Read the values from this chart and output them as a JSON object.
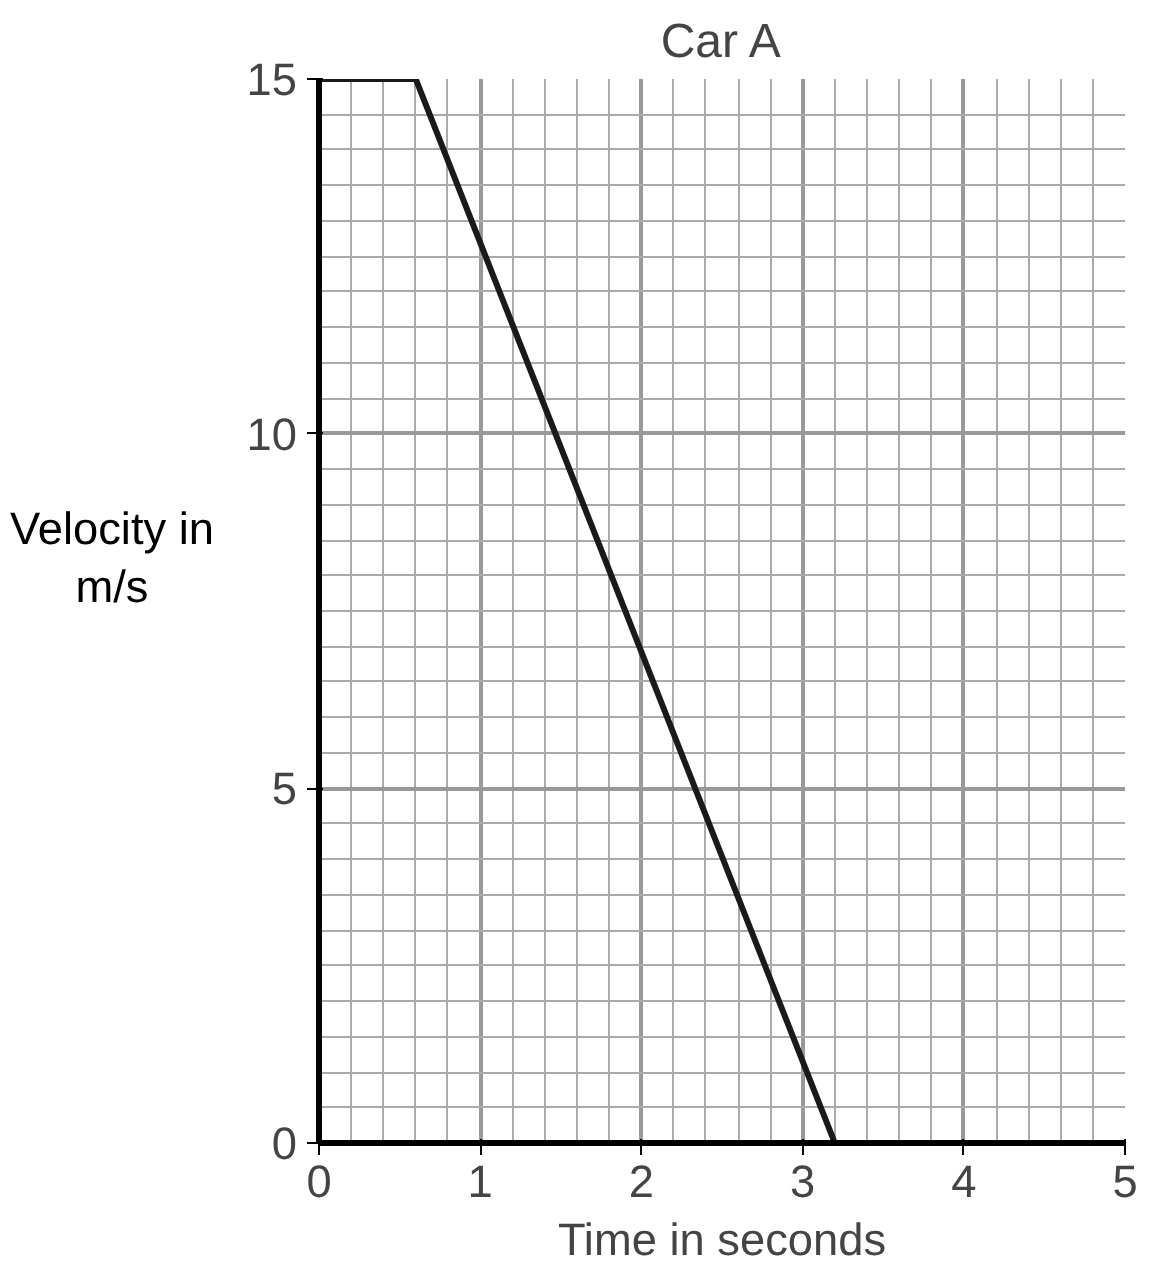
{
  "chart_data": {
    "type": "line",
    "title": "Car A",
    "xlabel": "Time in seconds",
    "ylabel": "Velocity in m/s",
    "x": [
      0,
      0.6,
      3.2,
      5
    ],
    "series": [
      {
        "color": "#1a1a1a",
        "values": [
          15,
          15,
          0,
          0
        ]
      }
    ],
    "xlim": [
      0,
      5
    ],
    "ylim": [
      0,
      15
    ],
    "xticks": [
      0,
      1,
      2,
      3,
      4,
      5
    ],
    "yticks": [
      0,
      5,
      10,
      15
    ],
    "grid": true,
    "marker": "none",
    "line_style": "solid"
  }
}
